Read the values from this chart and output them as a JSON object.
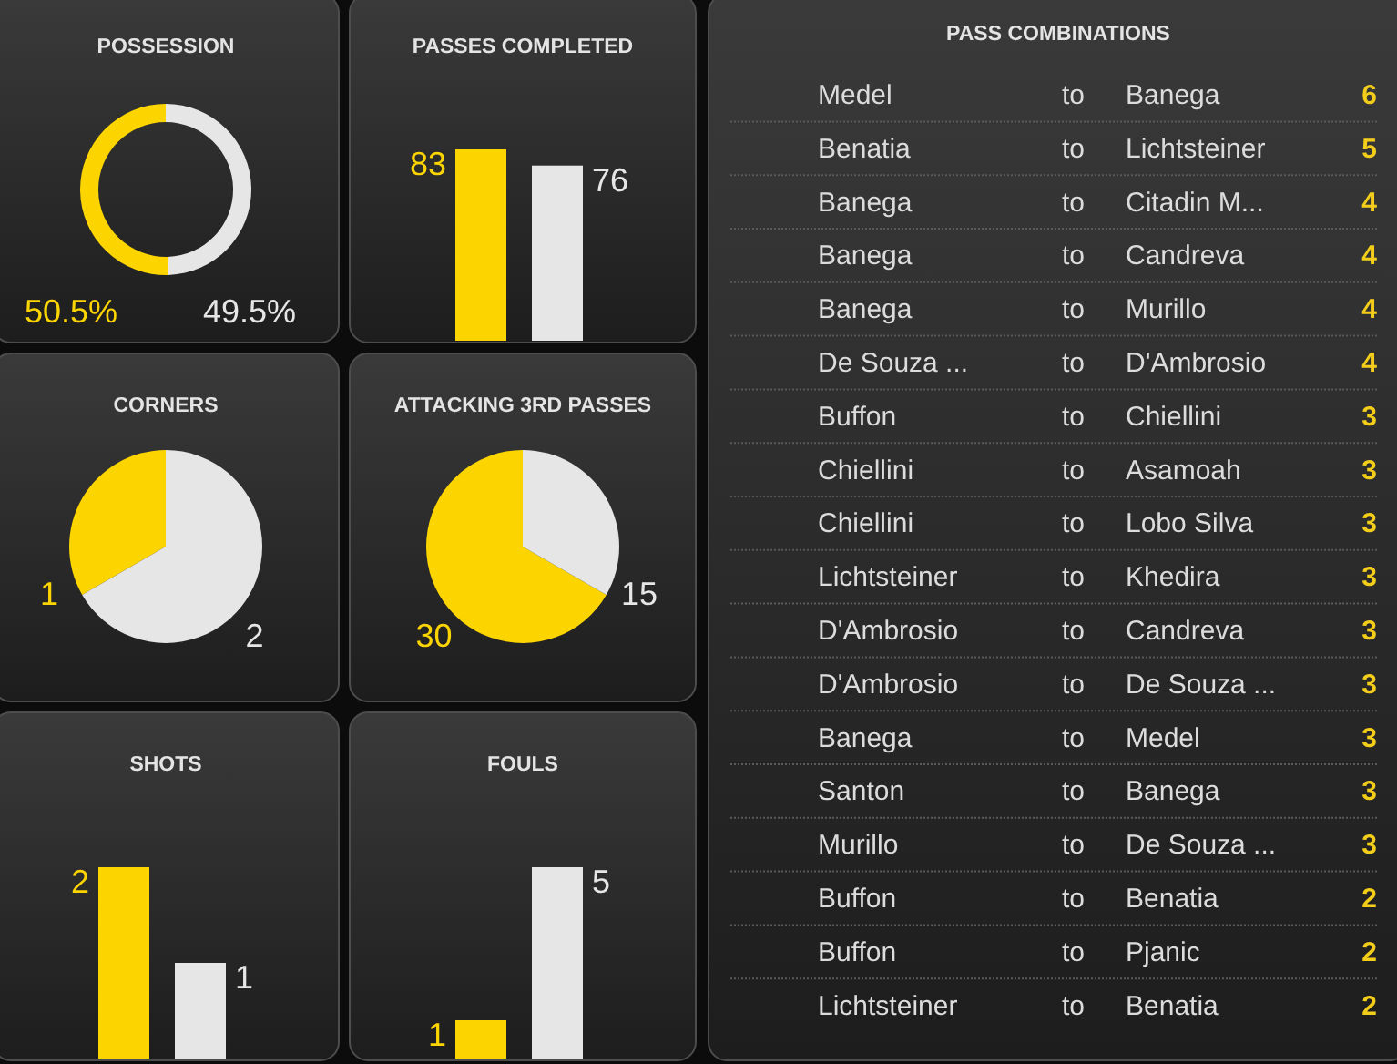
{
  "chart_data": [
    {
      "type": "donut",
      "title": "POSSESSION",
      "categories": [
        null,
        null
      ],
      "values": [
        50.5,
        49.5
      ],
      "colors": [
        "#fcd500",
        "#e6e6e6"
      ],
      "value_labels": [
        "50.5%",
        "49.5%"
      ]
    },
    {
      "type": "bar",
      "title": "PASSES COMPLETED",
      "categories": [
        null,
        null
      ],
      "values": [
        83,
        76
      ],
      "colors": [
        "#fcd500",
        "#e6e6e6"
      ],
      "data_labels": true
    },
    {
      "type": "pie",
      "title": "CORNERS",
      "categories": [
        null,
        null
      ],
      "values": [
        1,
        2
      ],
      "colors": [
        "#fcd500",
        "#e6e6e6"
      ],
      "data_labels": true
    },
    {
      "type": "pie",
      "title": "ATTACKING 3RD PASSES",
      "categories": [
        null,
        null
      ],
      "values": [
        30,
        15
      ],
      "colors": [
        "#fcd500",
        "#e6e6e6"
      ],
      "data_labels": true
    },
    {
      "type": "bar",
      "title": "SHOTS",
      "categories": [
        null,
        null
      ],
      "values": [
        2,
        1
      ],
      "colors": [
        "#fcd500",
        "#e6e6e6"
      ],
      "data_labels": true
    },
    {
      "type": "bar",
      "title": "FOULS",
      "categories": [
        null,
        null
      ],
      "values": [
        1,
        5
      ],
      "colors": [
        "#fcd500",
        "#e6e6e6"
      ],
      "data_labels": true
    },
    {
      "type": "other",
      "title": "PASS COMBINATIONS",
      "cell_labels": [
        [
          "Medel",
          "to",
          "Banega",
          "6"
        ],
        [
          "Benatia",
          "to",
          "Lichtsteiner",
          "5"
        ],
        [
          "Banega",
          "to",
          "Citadin M...",
          "4"
        ],
        [
          "Banega",
          "to",
          "Candreva",
          "4"
        ],
        [
          "Banega",
          "to",
          "Murillo",
          "4"
        ],
        [
          "De Souza ...",
          "to",
          "D'Ambrosio",
          "4"
        ],
        [
          "Buffon",
          "to",
          "Chiellini",
          "3"
        ],
        [
          "Chiellini",
          "to",
          "Asamoah",
          "3"
        ],
        [
          "Chiellini",
          "to",
          "Lobo Silva",
          "3"
        ],
        [
          "Lichtsteiner",
          "to",
          "Khedira",
          "3"
        ],
        [
          "D'Ambrosio",
          "to",
          "Candreva",
          "3"
        ],
        [
          "D'Ambrosio",
          "to",
          "De Souza ...",
          "3"
        ],
        [
          "Banega",
          "to",
          "Medel",
          "3"
        ],
        [
          "Santon",
          "to",
          "Banega",
          "3"
        ],
        [
          "Murillo",
          "to",
          "De Souza ...",
          "3"
        ],
        [
          "Buffon",
          "to",
          "Benatia",
          "2"
        ],
        [
          "Buffon",
          "to",
          "Pjanic",
          "2"
        ],
        [
          "Lichtsteiner",
          "to",
          "Benatia",
          "2"
        ]
      ]
    }
  ]
}
